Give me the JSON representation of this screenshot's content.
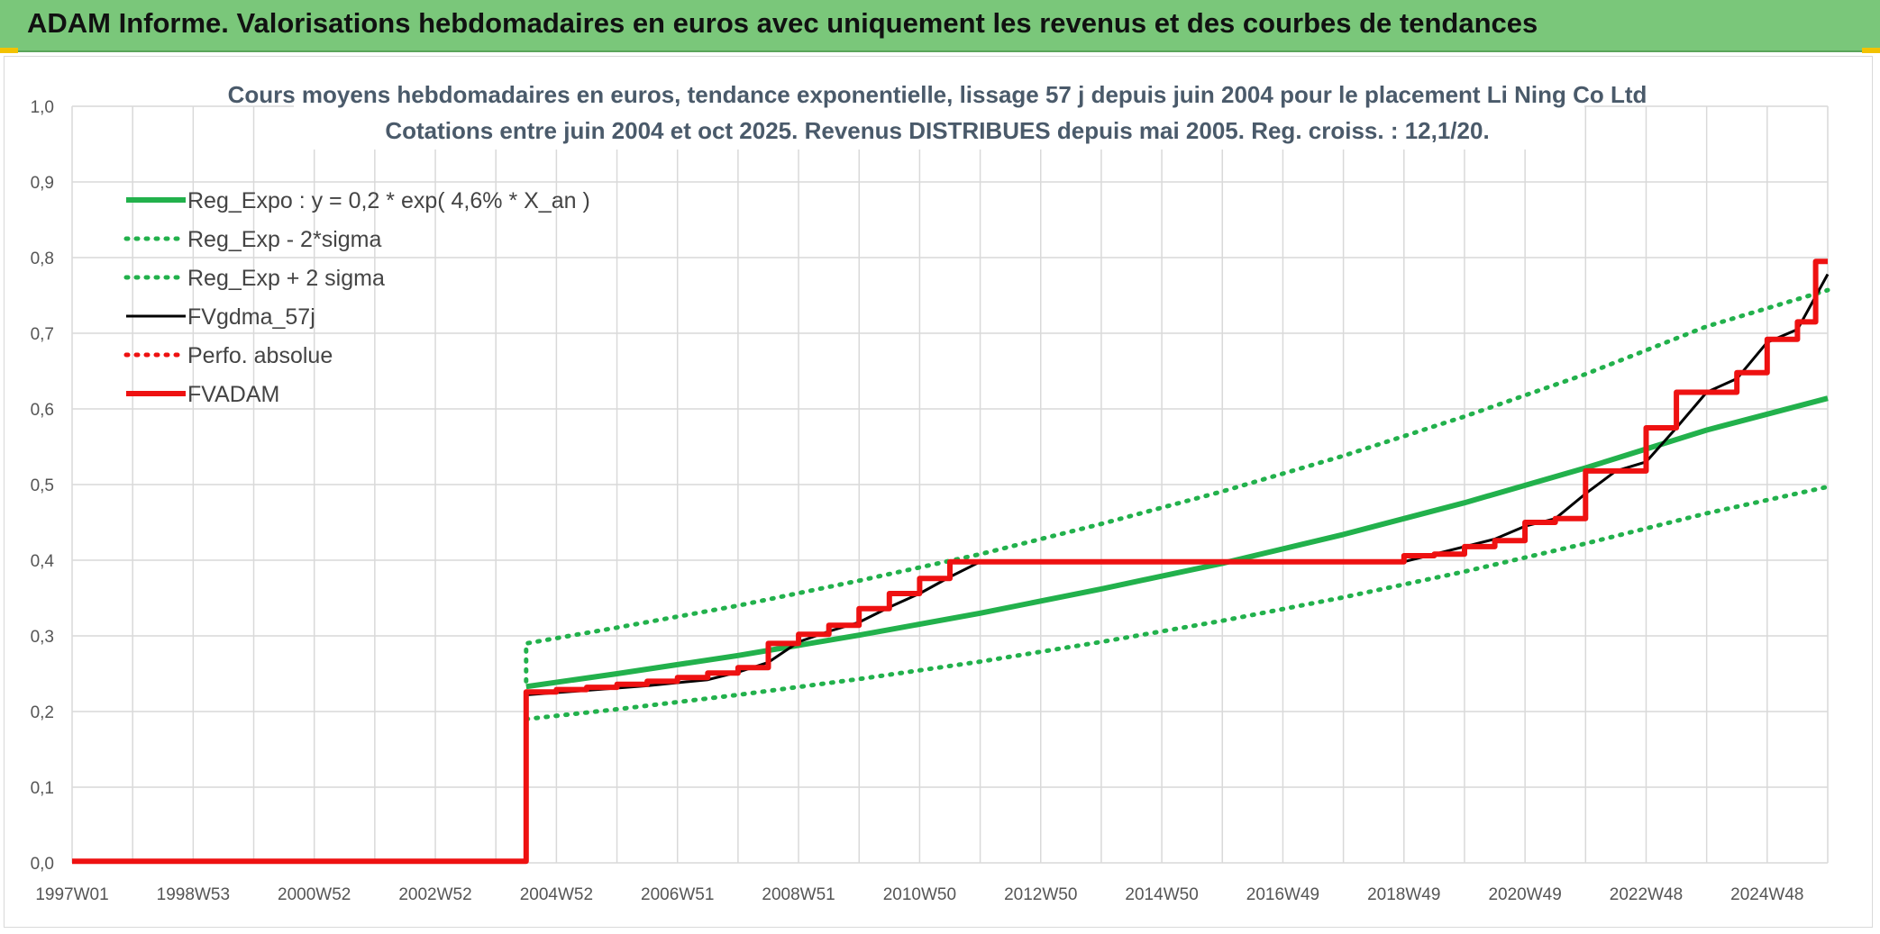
{
  "header": {
    "title": "ADAM Informe. Valorisations hebdomadaires en euros avec uniquement les revenus et des courbes de tendances"
  },
  "chart_data": {
    "type": "line",
    "title_lines": [
      "Cours moyens hebdomadaires en euros, tendance exponentielle, lissage 57 j depuis juin 2004 pour le placement Li Ning Co Ltd",
      "Cotations entre juin 2004 et oct 2025. Revenus DISTRIBUES depuis mai 2005. Reg. croiss. : 12,1/20."
    ],
    "x_tick_labels": [
      "1997W01",
      "1998W53",
      "2000W52",
      "2002W52",
      "2004W52",
      "2006W51",
      "2008W51",
      "2010W50",
      "2012W50",
      "2014W50",
      "2016W49",
      "2018W49",
      "2020W49",
      "2022W48",
      "2024W48"
    ],
    "x_tick_years": [
      1997.0,
      1999.0,
      2001.0,
      2003.0,
      2005.0,
      2007.0,
      2009.0,
      2011.0,
      2013.0,
      2015.0,
      2017.0,
      2019.0,
      2021.0,
      2023.0,
      2025.0
    ],
    "xlim": [
      1997.0,
      2026.0
    ],
    "y_tick_labels": [
      "0,0",
      "0,1",
      "0,2",
      "0,3",
      "0,4",
      "0,5",
      "0,6",
      "0,7",
      "0,8",
      "0,9",
      "1,0"
    ],
    "ylim": [
      0,
      1.0
    ],
    "grid": true,
    "legend_position": "top-left",
    "colors": {
      "green": "#22b14c",
      "black": "#000000",
      "red": "#ee1111",
      "grid": "#d9d9d9"
    },
    "series": [
      {
        "name": "Reg_Expo : y = 0,2 * exp( 4,6% *  X_an )",
        "style": "solid",
        "color": "#22b14c",
        "x": [
          2004.5,
          2006,
          2008,
          2010,
          2012,
          2014,
          2016,
          2018,
          2020,
          2022,
          2024,
          2026
        ],
        "y": [
          0.233,
          0.25,
          0.274,
          0.301,
          0.33,
          0.362,
          0.396,
          0.434,
          0.476,
          0.522,
          0.572,
          0.614
        ]
      },
      {
        "name": "Reg_Exp - 2*sigma",
        "style": "dotted",
        "color": "#22b14c",
        "x": [
          2004.5,
          2006,
          2008,
          2010,
          2012,
          2014,
          2016,
          2018,
          2020,
          2022,
          2024,
          2026
        ],
        "y": [
          0.19,
          0.203,
          0.222,
          0.243,
          0.266,
          0.292,
          0.32,
          0.351,
          0.385,
          0.422,
          0.462,
          0.497
        ]
      },
      {
        "name": "Reg_Exp + 2 sigma",
        "style": "dotted",
        "color": "#22b14c",
        "x": [
          2004.5,
          2004.5,
          2006,
          2008,
          2010,
          2012,
          2014,
          2016,
          2018,
          2020,
          2022,
          2024,
          2026
        ],
        "y": [
          0.24,
          0.29,
          0.311,
          0.34,
          0.373,
          0.408,
          0.448,
          0.491,
          0.538,
          0.59,
          0.646,
          0.709,
          0.757
        ]
      },
      {
        "name": "FVgdma_57j",
        "style": "solid",
        "color": "#000000",
        "x": [
          1997.0,
          2004.5,
          2004.5,
          2005.5,
          2006.5,
          2007.5,
          2008.0,
          2008.5,
          2009.0,
          2009.5,
          2010.0,
          2010.5,
          2011.0,
          2011.5,
          2012.0,
          2019.0,
          2019.5,
          2020.0,
          2020.5,
          2021.0,
          2021.5,
          2022.0,
          2022.5,
          2023.0,
          2023.5,
          2024.0,
          2024.5,
          2025.0,
          2025.5,
          2026.0
        ],
        "y": [
          0.002,
          0.002,
          0.222,
          0.228,
          0.234,
          0.242,
          0.252,
          0.265,
          0.292,
          0.306,
          0.318,
          0.338,
          0.356,
          0.378,
          0.398,
          0.398,
          0.408,
          0.418,
          0.428,
          0.445,
          0.455,
          0.488,
          0.518,
          0.53,
          0.575,
          0.622,
          0.64,
          0.688,
          0.705,
          0.778
        ]
      },
      {
        "name": "Perfo. absolue",
        "style": "dotted",
        "color": "#ee1111",
        "x": [],
        "y": []
      },
      {
        "name": "FVADAM",
        "style": "solid",
        "color": "#ee1111",
        "x": [
          1997.0,
          2004.5,
          2004.5,
          2005.0,
          2005.0,
          2005.5,
          2005.5,
          2006.0,
          2006.0,
          2006.5,
          2006.5,
          2007.0,
          2007.0,
          2007.5,
          2007.5,
          2008.0,
          2008.0,
          2008.5,
          2008.5,
          2009.0,
          2009.0,
          2009.5,
          2009.5,
          2010.0,
          2010.0,
          2010.5,
          2010.5,
          2011.0,
          2011.0,
          2011.5,
          2011.5,
          2012.0,
          2012.0,
          2019.0,
          2019.0,
          2019.5,
          2019.5,
          2020.0,
          2020.0,
          2020.5,
          2020.5,
          2021.0,
          2021.0,
          2021.5,
          2021.5,
          2022.0,
          2022.0,
          2022.5,
          2022.5,
          2023.0,
          2023.0,
          2023.5,
          2023.5,
          2024.0,
          2024.0,
          2024.5,
          2024.5,
          2025.0,
          2025.0,
          2025.5,
          2025.5,
          2025.8,
          2025.8,
          2026.0
        ],
        "y": [
          0.002,
          0.002,
          0.226,
          0.226,
          0.229,
          0.229,
          0.232,
          0.232,
          0.236,
          0.236,
          0.24,
          0.24,
          0.245,
          0.245,
          0.251,
          0.251,
          0.258,
          0.258,
          0.29,
          0.29,
          0.302,
          0.302,
          0.314,
          0.314,
          0.336,
          0.336,
          0.356,
          0.356,
          0.376,
          0.376,
          0.398,
          0.398,
          0.398,
          0.398,
          0.406,
          0.406,
          0.408,
          0.408,
          0.418,
          0.418,
          0.426,
          0.426,
          0.45,
          0.45,
          0.455,
          0.455,
          0.518,
          0.518,
          0.518,
          0.518,
          0.575,
          0.575,
          0.622,
          0.622,
          0.622,
          0.622,
          0.648,
          0.648,
          0.692,
          0.692,
          0.715,
          0.715,
          0.795,
          0.795
        ]
      }
    ]
  }
}
